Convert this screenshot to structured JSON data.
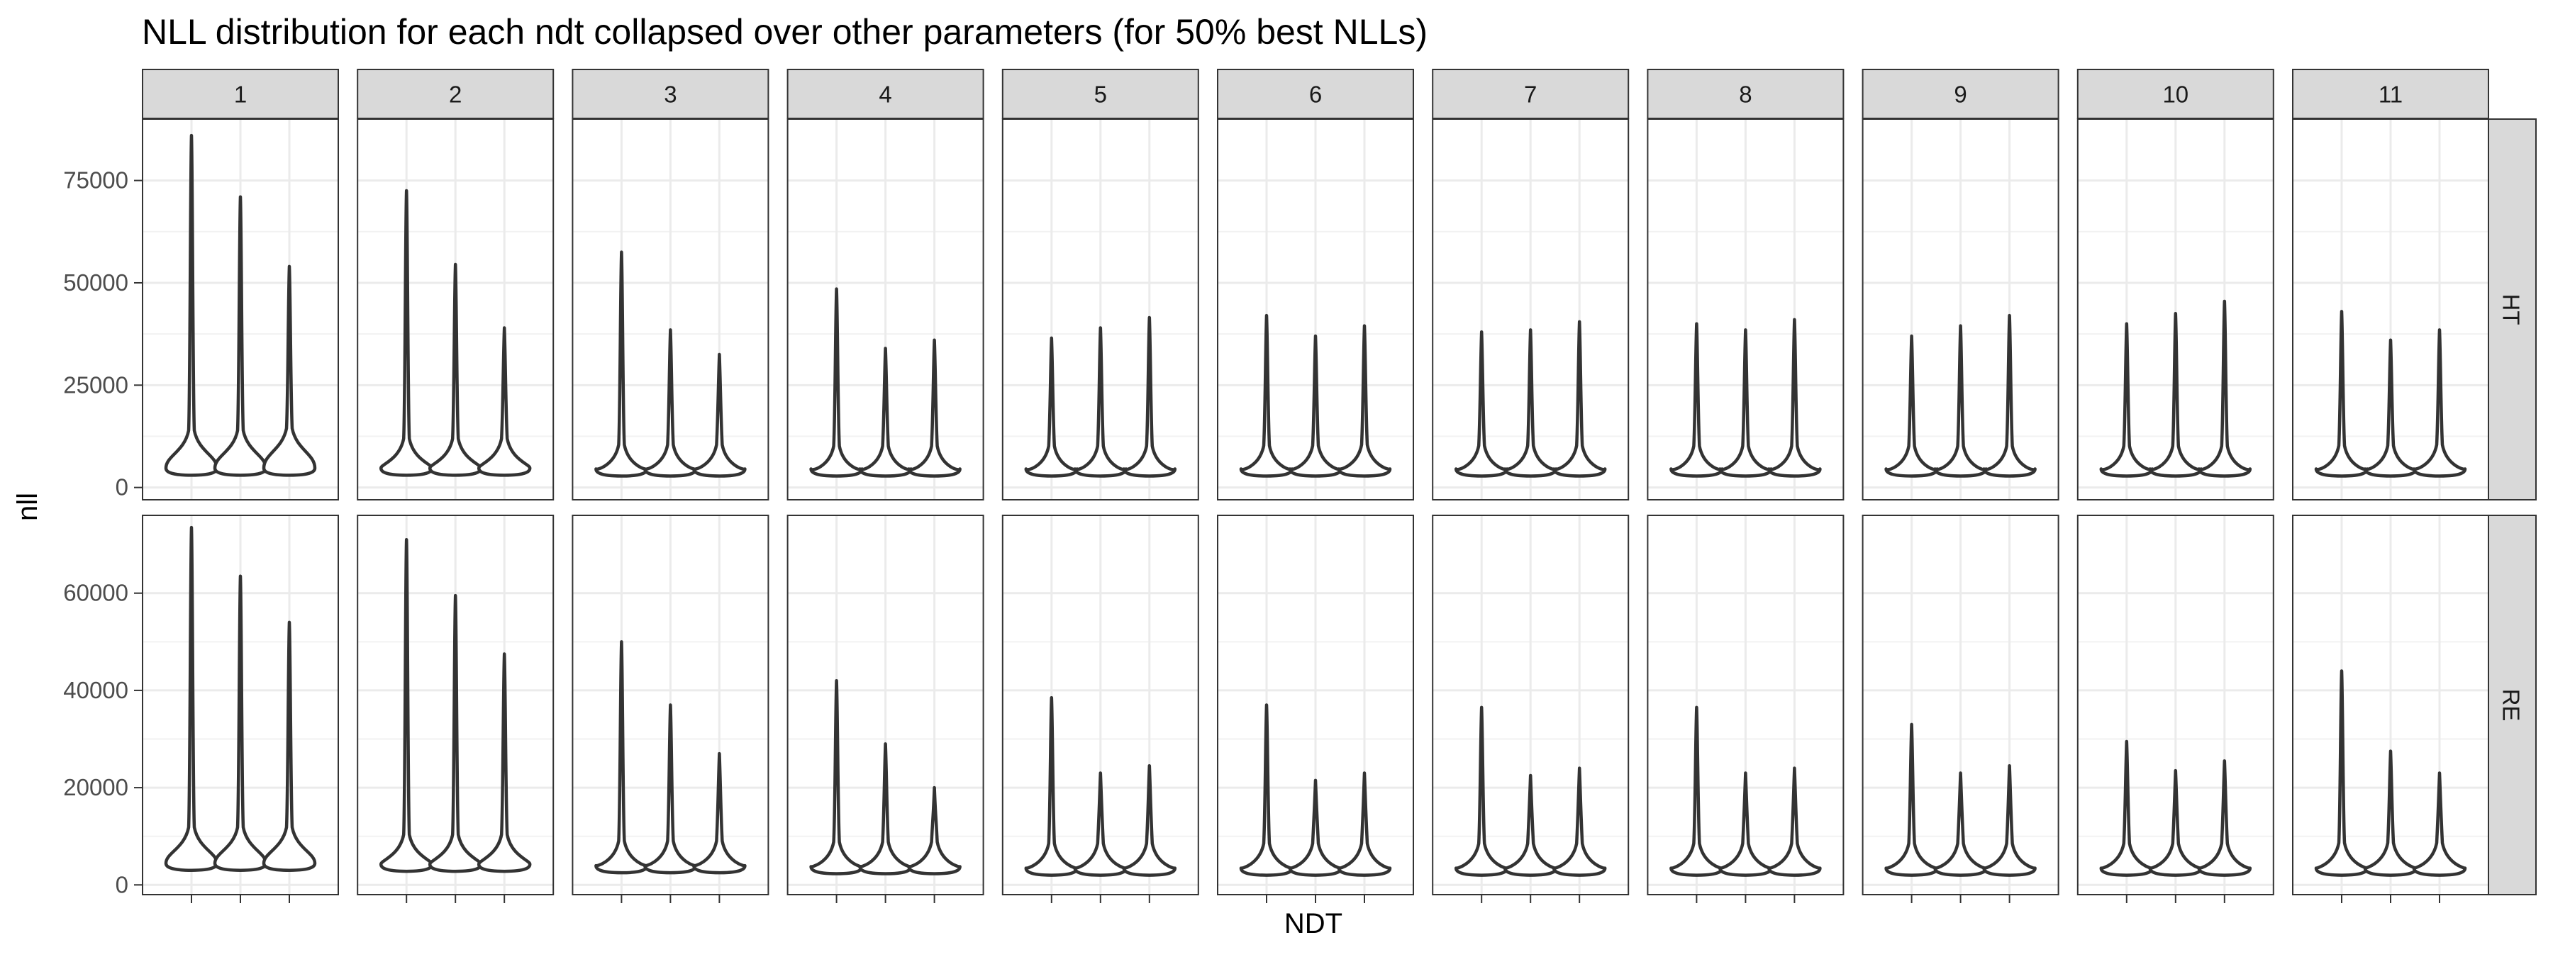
{
  "chart_data": {
    "type": "violin",
    "title": "NLL distribution for each ndt collapsed over other parameters (for 50% best NLLs)",
    "xlabel": "NDT",
    "ylabel": "nll",
    "facet_columns": [
      "1",
      "2",
      "3",
      "4",
      "5",
      "6",
      "7",
      "8",
      "9",
      "10",
      "11"
    ],
    "facet_rows": [
      "HT",
      "RE"
    ],
    "violins_per_panel": 3,
    "x_tick_labels": "none",
    "grid": true,
    "rows": [
      {
        "label": "HT",
        "y_ticks": [
          0,
          25000,
          50000,
          75000
        ],
        "y_tick_labels": [
          "0",
          "25000",
          "50000",
          "75000"
        ],
        "ylim": [
          -3000,
          90000
        ],
        "panels": [
          [
            [
              3000,
              86000,
              7000
            ],
            [
              3000,
              71000,
              7000
            ],
            [
              3000,
              54000,
              7500
            ]
          ],
          [
            [
              3000,
              72500,
              5000
            ],
            [
              3000,
              54500,
              5000
            ],
            [
              3000,
              39000,
              5000
            ]
          ],
          [
            [
              2800,
              57500,
              3500
            ],
            [
              2800,
              38500,
              3500
            ],
            [
              2800,
              32500,
              3500
            ]
          ],
          [
            [
              2800,
              48500,
              3200
            ],
            [
              2800,
              34000,
              3200
            ],
            [
              2800,
              36000,
              3200
            ]
          ],
          [
            [
              2800,
              36500,
              3200
            ],
            [
              2800,
              39000,
              3200
            ],
            [
              2800,
              41500,
              3200
            ]
          ],
          [
            [
              2800,
              42000,
              3300
            ],
            [
              2800,
              37000,
              3300
            ],
            [
              2800,
              39500,
              3500
            ]
          ],
          [
            [
              2800,
              38000,
              3300
            ],
            [
              2800,
              38500,
              3300
            ],
            [
              2800,
              40500,
              3300
            ]
          ],
          [
            [
              2800,
              40000,
              3200
            ],
            [
              2800,
              38500,
              3200
            ],
            [
              2800,
              41000,
              3200
            ]
          ],
          [
            [
              2800,
              37000,
              3200
            ],
            [
              2800,
              39500,
              3200
            ],
            [
              2800,
              42000,
              3200
            ]
          ],
          [
            [
              2800,
              40000,
              3200
            ],
            [
              2800,
              42500,
              3200
            ],
            [
              2800,
              45500,
              3200
            ]
          ],
          [
            [
              2800,
              43000,
              3300
            ],
            [
              2800,
              36000,
              3300
            ],
            [
              2800,
              38500,
              3500
            ]
          ]
        ]
      },
      {
        "label": "RE",
        "y_ticks": [
          0,
          20000,
          40000,
          60000
        ],
        "y_tick_labels": [
          "0",
          "20000",
          "40000",
          "60000"
        ],
        "ylim": [
          -2000,
          76000
        ],
        "panels": [
          [
            [
              3000,
              73500,
              6000
            ],
            [
              3000,
              63500,
              6000
            ],
            [
              3000,
              54000,
              6000
            ]
          ],
          [
            [
              2800,
              71000,
              4500
            ],
            [
              2800,
              59500,
              4500
            ],
            [
              2800,
              47500,
              4500
            ]
          ],
          [
            [
              2500,
              50000,
              3200
            ],
            [
              2500,
              37000,
              3200
            ],
            [
              2500,
              27000,
              3200
            ]
          ],
          [
            [
              2300,
              42000,
              3000
            ],
            [
              2300,
              29000,
              3000
            ],
            [
              2300,
              20000,
              3000
            ]
          ],
          [
            [
              2000,
              38500,
              2700
            ],
            [
              2000,
              23000,
              2700
            ],
            [
              2000,
              24500,
              2700
            ]
          ],
          [
            [
              2000,
              37000,
              2700
            ],
            [
              2000,
              21500,
              2700
            ],
            [
              2000,
              23000,
              2700
            ]
          ],
          [
            [
              2000,
              36500,
              2700
            ],
            [
              2000,
              22500,
              2700
            ],
            [
              2000,
              24000,
              2700
            ]
          ],
          [
            [
              2000,
              36500,
              2700
            ],
            [
              2000,
              23000,
              2700
            ],
            [
              2000,
              24000,
              2700
            ]
          ],
          [
            [
              2000,
              33000,
              2700
            ],
            [
              2000,
              23000,
              2700
            ],
            [
              2000,
              24500,
              2700
            ]
          ],
          [
            [
              2000,
              29500,
              2700
            ],
            [
              2000,
              23500,
              2700
            ],
            [
              2000,
              25500,
              2700
            ]
          ],
          [
            [
              2000,
              44000,
              2800
            ],
            [
              2000,
              27500,
              2800
            ],
            [
              2000,
              23000,
              2800
            ]
          ]
        ]
      }
    ]
  }
}
